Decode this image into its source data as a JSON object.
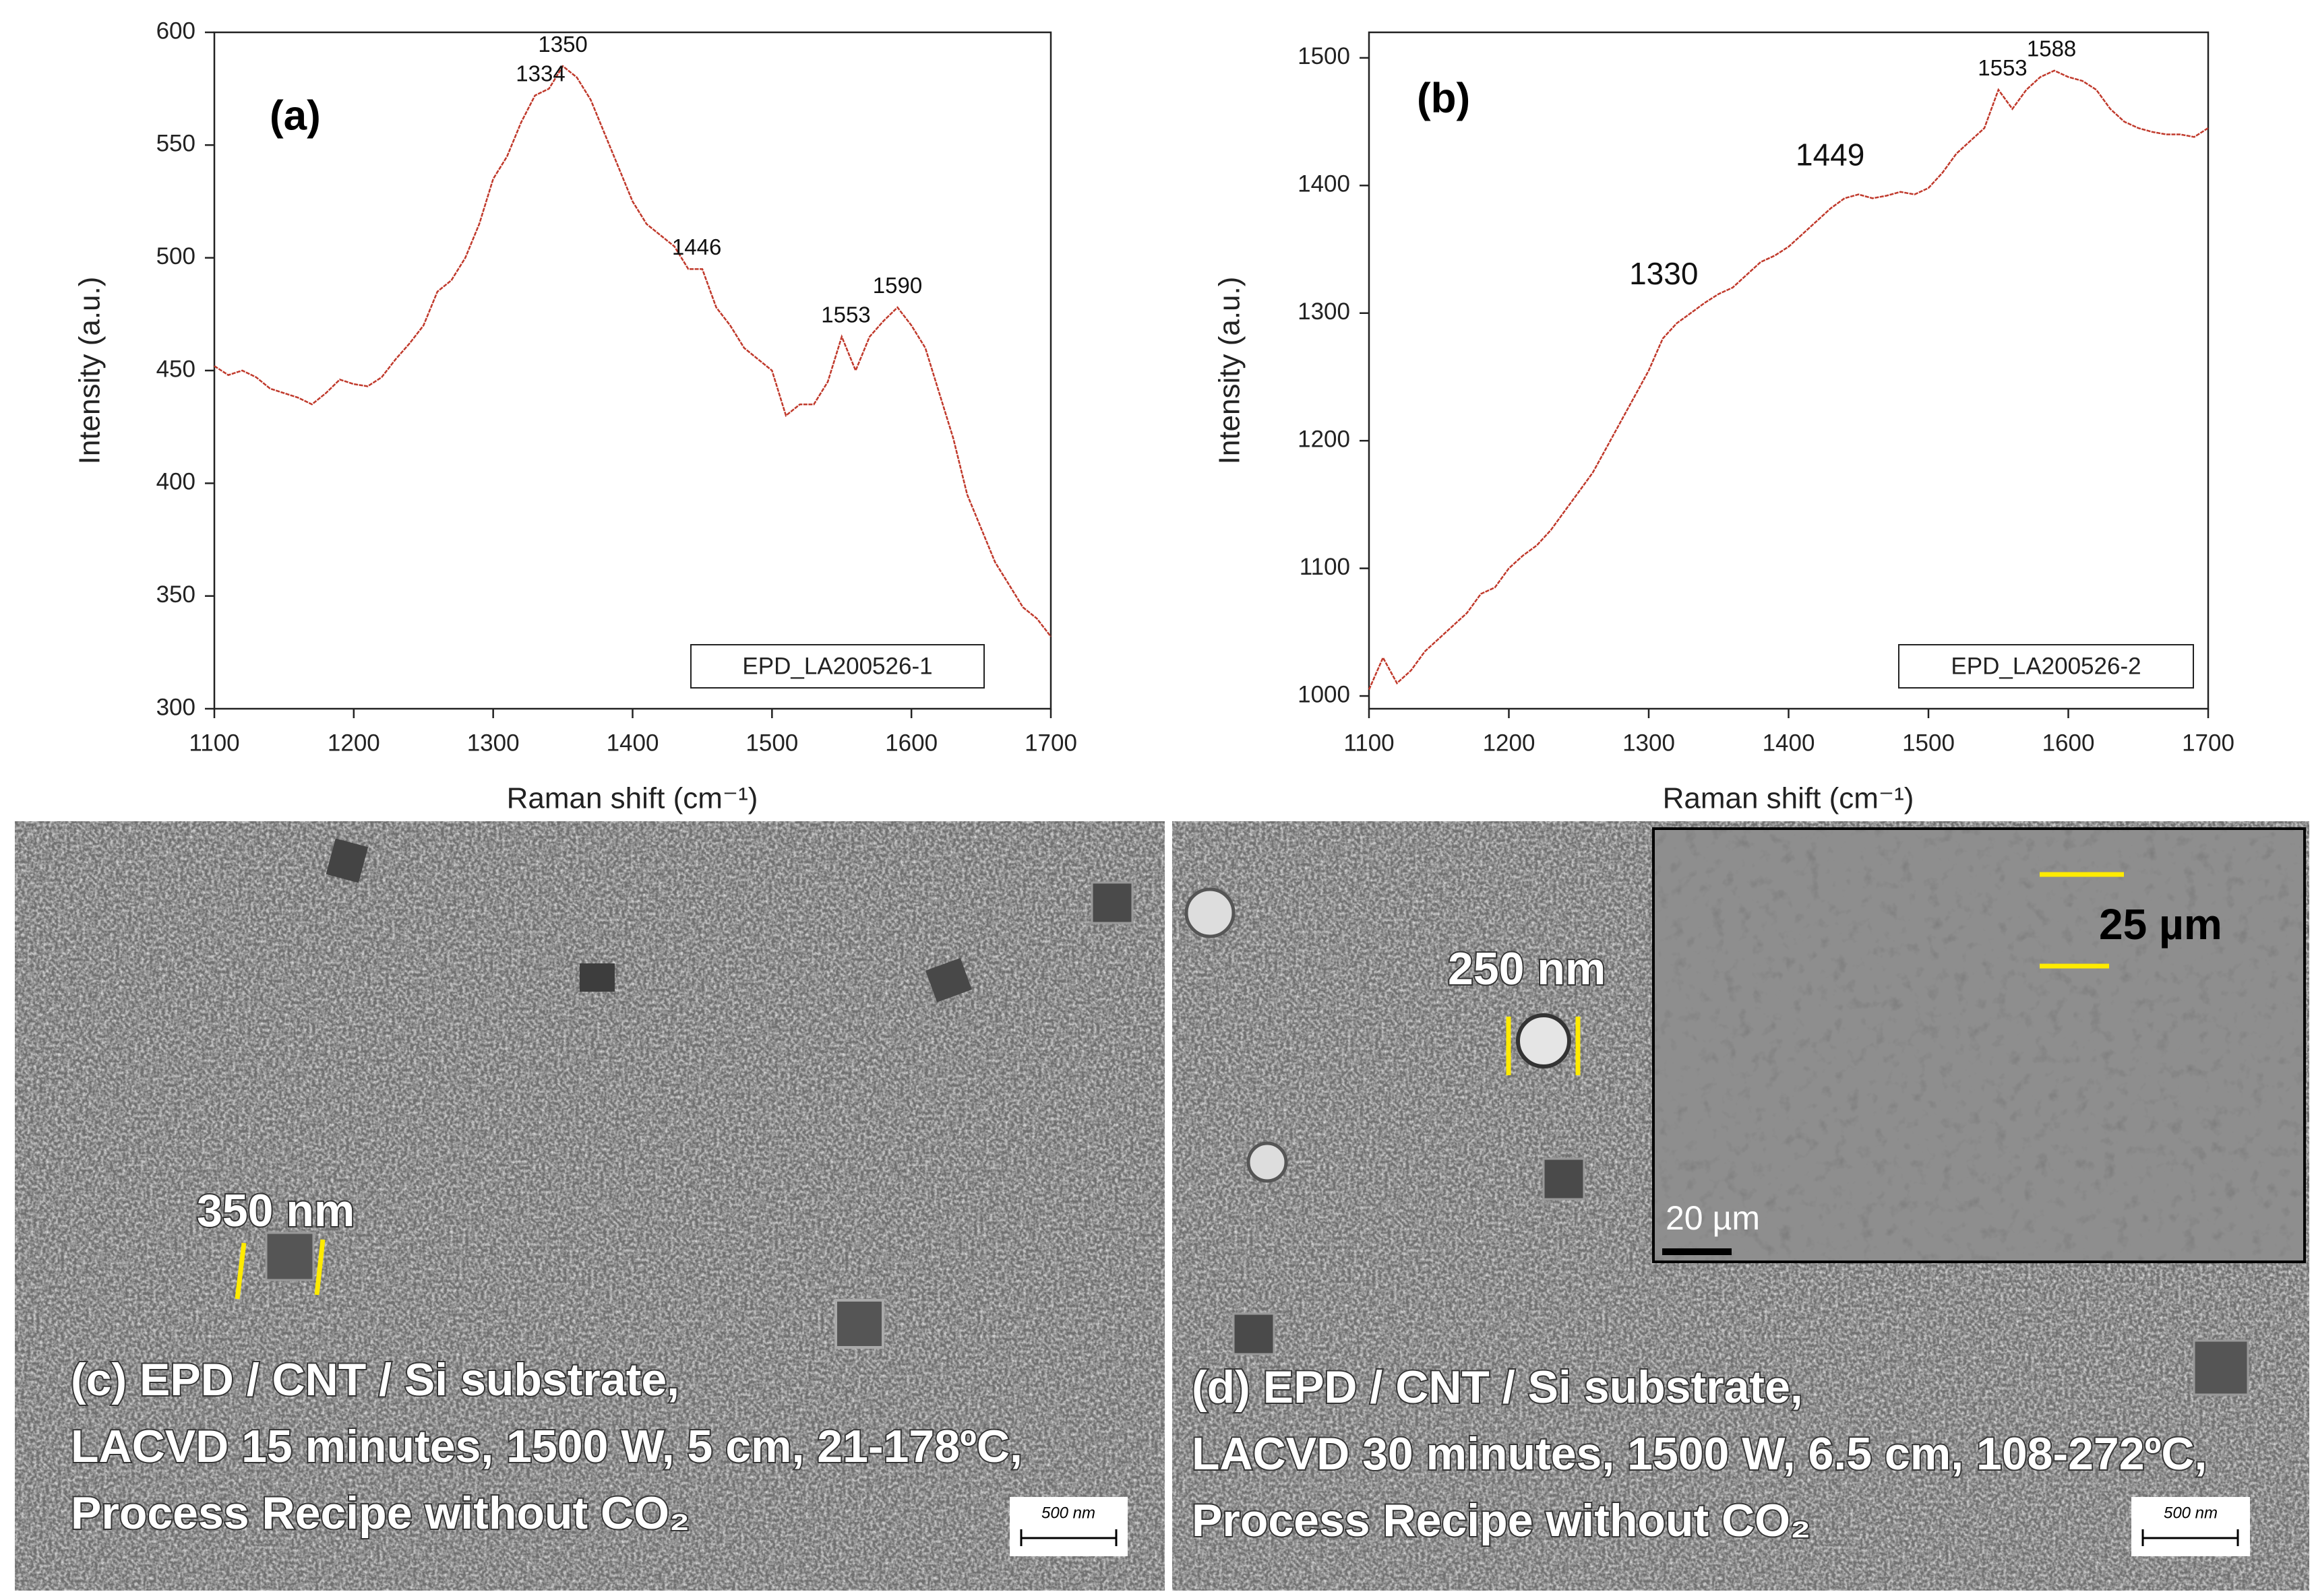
{
  "chart_data": [
    {
      "type": "line",
      "panel_label": "(a)",
      "xlabel": "Raman shift (cm⁻¹)",
      "ylabel": "Intensity (a.u.)",
      "x": [
        1100,
        1110,
        1120,
        1130,
        1140,
        1150,
        1160,
        1170,
        1180,
        1190,
        1200,
        1210,
        1220,
        1230,
        1240,
        1250,
        1260,
        1270,
        1280,
        1290,
        1300,
        1310,
        1320,
        1330,
        1340,
        1350,
        1360,
        1370,
        1380,
        1390,
        1400,
        1410,
        1420,
        1430,
        1440,
        1450,
        1460,
        1470,
        1480,
        1490,
        1500,
        1510,
        1520,
        1530,
        1540,
        1550,
        1560,
        1570,
        1580,
        1590,
        1600,
        1610,
        1620,
        1630,
        1640,
        1650,
        1660,
        1670,
        1680,
        1690,
        1700
      ],
      "series": [
        {
          "name": "EPD_LA200526-1",
          "color": "#c0392b",
          "values": [
            452,
            448,
            450,
            447,
            442,
            440,
            438,
            435,
            440,
            446,
            444,
            443,
            447,
            455,
            462,
            470,
            485,
            490,
            500,
            515,
            535,
            545,
            560,
            572,
            575,
            585,
            580,
            570,
            555,
            540,
            525,
            515,
            510,
            505,
            495,
            495,
            478,
            470,
            460,
            455,
            450,
            430,
            435,
            435,
            445,
            465,
            450,
            465,
            472,
            478,
            470,
            460,
            440,
            420,
            395,
            380,
            365,
            355,
            345,
            340,
            332
          ]
        }
      ],
      "xlim": [
        1100,
        1700
      ],
      "xticks": [
        1100,
        1200,
        1300,
        1400,
        1500,
        1600,
        1700
      ],
      "ylim": [
        300,
        600
      ],
      "yticks": [
        300,
        350,
        400,
        450,
        500,
        550,
        600
      ],
      "annotations": [
        1334,
        1350,
        1446,
        1553,
        1590
      ]
    },
    {
      "type": "line",
      "panel_label": "(b)",
      "xlabel": "Raman shift (cm⁻¹)",
      "ylabel": "Intensity (a.u.)",
      "x": [
        1100,
        1110,
        1120,
        1130,
        1140,
        1150,
        1160,
        1170,
        1180,
        1190,
        1200,
        1210,
        1220,
        1230,
        1240,
        1250,
        1260,
        1270,
        1280,
        1290,
        1300,
        1310,
        1320,
        1330,
        1340,
        1350,
        1360,
        1370,
        1380,
        1390,
        1400,
        1410,
        1420,
        1430,
        1440,
        1450,
        1460,
        1470,
        1480,
        1490,
        1500,
        1510,
        1520,
        1530,
        1540,
        1550,
        1560,
        1570,
        1580,
        1590,
        1600,
        1610,
        1620,
        1630,
        1640,
        1650,
        1660,
        1670,
        1680,
        1690,
        1700
      ],
      "series": [
        {
          "name": "EPD_LA200526-2",
          "color": "#c0392b",
          "values": [
            1005,
            1030,
            1010,
            1020,
            1035,
            1045,
            1055,
            1065,
            1080,
            1085,
            1100,
            1110,
            1118,
            1130,
            1145,
            1160,
            1175,
            1195,
            1215,
            1235,
            1255,
            1280,
            1292,
            1300,
            1308,
            1315,
            1320,
            1330,
            1340,
            1345,
            1352,
            1362,
            1372,
            1382,
            1390,
            1393,
            1390,
            1392,
            1395,
            1393,
            1398,
            1410,
            1425,
            1435,
            1445,
            1475,
            1460,
            1475,
            1485,
            1490,
            1485,
            1482,
            1475,
            1460,
            1450,
            1445,
            1442,
            1440,
            1440,
            1438,
            1445
          ]
        }
      ],
      "xlim": [
        1100,
        1700
      ],
      "xticks": [
        1100,
        1200,
        1300,
        1400,
        1500,
        1600,
        1700
      ],
      "ylim": [
        990,
        1520
      ],
      "yticks": [
        1000,
        1100,
        1200,
        1300,
        1400,
        1500
      ],
      "annotations": [
        1330,
        1449,
        1553,
        1588
      ]
    }
  ],
  "images": [
    {
      "caption": [
        "(c) EPD / CNT / Si substrate,",
        "LACVD 15 minutes, 1500 W, 5 cm, 21-178ºC,",
        "Process Recipe without CO₂"
      ],
      "feature_label": "350 nm",
      "scale_bar": "500 nm"
    },
    {
      "caption": [
        "(d) EPD / CNT / Si substrate,",
        "LACVD 30 minutes, 1500 W, 6.5 cm, 108-272ºC,",
        "Process Recipe without CO₂"
      ],
      "feature_label": "250 nm",
      "scale_bar": "500 nm",
      "inset": {
        "feature_label": "25 µm",
        "scale_bar": "20 µm"
      }
    }
  ]
}
